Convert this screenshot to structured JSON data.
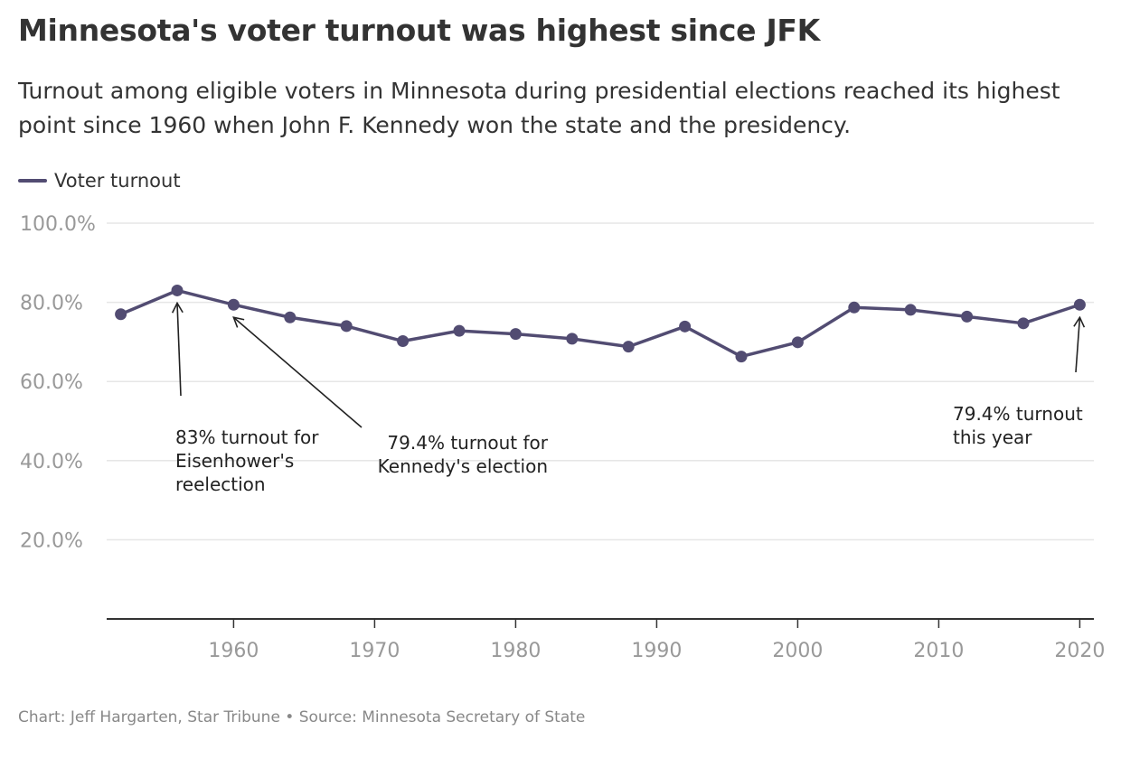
{
  "header": {
    "title": "Minnesota's voter turnout was highest since JFK",
    "subtitle": "Turnout among eligible voters in Minnesota during presidential elections reached its highest point since 1960 when John F. Kennedy won the state and the presidency."
  },
  "legend": {
    "label": "Voter turnout",
    "color": "#524c72"
  },
  "chart_data": {
    "type": "line",
    "series": [
      {
        "name": "Voter turnout",
        "color": "#524c72",
        "x": [
          1952,
          1956,
          1960,
          1964,
          1968,
          1972,
          1976,
          1980,
          1984,
          1988,
          1992,
          1996,
          2000,
          2004,
          2008,
          2012,
          2016,
          2020
        ],
        "values": [
          77.0,
          83.0,
          79.4,
          76.2,
          74.0,
          70.2,
          72.8,
          72.0,
          70.8,
          68.8,
          73.9,
          66.3,
          69.9,
          78.7,
          78.1,
          76.4,
          74.7,
          79.4
        ]
      }
    ],
    "xlim": [
      1951,
      2021
    ],
    "ylim": [
      0,
      100
    ],
    "yticks": [
      20,
      40,
      60,
      80,
      100
    ],
    "ytick_labels": [
      "20.0%",
      "40.0%",
      "60.0%",
      "80.0%",
      "100.0%"
    ],
    "xticks": [
      1960,
      1970,
      1980,
      1990,
      2000,
      2010,
      2020
    ],
    "xtick_labels": [
      "1960",
      "1970",
      "1980",
      "1990",
      "2000",
      "2010",
      "2020"
    ],
    "grid": true,
    "legend_position": "top-left",
    "annotations": [
      {
        "lines": [
          "83% turnout for",
          "Eisenhower's",
          "reelection"
        ],
        "target_x": 1956,
        "target_y": 83.0
      },
      {
        "lines": [
          "79.4% turnout for",
          "Kennedy's election"
        ],
        "target_x": 1960,
        "target_y": 79.4
      },
      {
        "lines": [
          "79.4% turnout",
          "this year"
        ],
        "target_x": 2020,
        "target_y": 79.4
      }
    ]
  },
  "footer": {
    "source": "Chart: Jeff Hargarten, Star Tribune • Source: Minnesota Secretary of State"
  }
}
